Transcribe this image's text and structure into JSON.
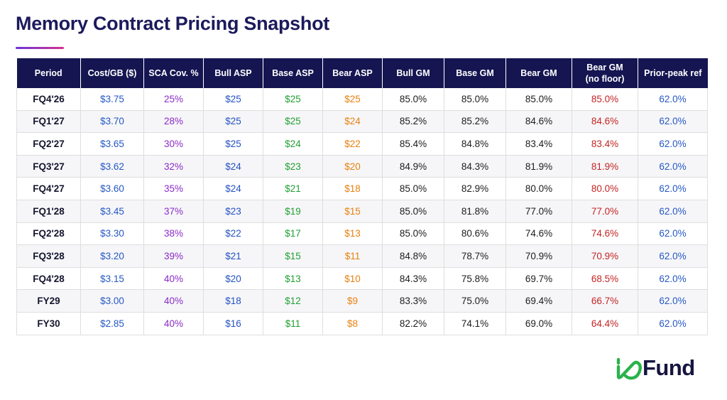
{
  "title": "Memory Contract Pricing Snapshot",
  "colors": {
    "header_bg": "#151552",
    "title": "#1c1a5c",
    "cost": "#2457c5",
    "sca": "#8a2bc7",
    "bull_asp": "#2452c3",
    "base_asp": "#22a034",
    "bear_asp": "#e8800e",
    "bear_gm_no_floor": "#c42424",
    "prior_peak": "#2457c5",
    "logo_green": "#2bb24c"
  },
  "logo": {
    "text": "Fund",
    "mark_icon": "io-logo-mark"
  },
  "chart_data": {
    "type": "table",
    "columns": [
      "Period",
      "Cost/GB ($)",
      "SCA Cov. %",
      "Bull ASP",
      "Base ASP",
      "Bear ASP",
      "Bull GM",
      "Base GM",
      "Bear GM",
      "Bear GM\n(no floor)",
      "Prior-peak ref"
    ],
    "rows": [
      [
        "FQ4'26",
        "$3.75",
        "25%",
        "$25",
        "$25",
        "$25",
        "85.0%",
        "85.0%",
        "85.0%",
        "85.0%",
        "62.0%"
      ],
      [
        "FQ1'27",
        "$3.70",
        "28%",
        "$25",
        "$25",
        "$24",
        "85.2%",
        "85.2%",
        "84.6%",
        "84.6%",
        "62.0%"
      ],
      [
        "FQ2'27",
        "$3.65",
        "30%",
        "$25",
        "$24",
        "$22",
        "85.4%",
        "84.8%",
        "83.4%",
        "83.4%",
        "62.0%"
      ],
      [
        "FQ3'27",
        "$3.62",
        "32%",
        "$24",
        "$23",
        "$20",
        "84.9%",
        "84.3%",
        "81.9%",
        "81.9%",
        "62.0%"
      ],
      [
        "FQ4'27",
        "$3.60",
        "35%",
        "$24",
        "$21",
        "$18",
        "85.0%",
        "82.9%",
        "80.0%",
        "80.0%",
        "62.0%"
      ],
      [
        "FQ1'28",
        "$3.45",
        "37%",
        "$23",
        "$19",
        "$15",
        "85.0%",
        "81.8%",
        "77.0%",
        "77.0%",
        "62.0%"
      ],
      [
        "FQ2'28",
        "$3.30",
        "38%",
        "$22",
        "$17",
        "$13",
        "85.0%",
        "80.6%",
        "74.6%",
        "74.6%",
        "62.0%"
      ],
      [
        "FQ3'28",
        "$3.20",
        "39%",
        "$21",
        "$15",
        "$11",
        "84.8%",
        "78.7%",
        "70.9%",
        "70.9%",
        "62.0%"
      ],
      [
        "FQ4'28",
        "$3.15",
        "40%",
        "$20",
        "$13",
        "$10",
        "84.3%",
        "75.8%",
        "69.7%",
        "68.5%",
        "62.0%"
      ],
      [
        "FY29",
        "$3.00",
        "40%",
        "$18",
        "$12",
        "$9",
        "83.3%",
        "75.0%",
        "69.4%",
        "66.7%",
        "62.0%"
      ],
      [
        "FY30",
        "$2.85",
        "40%",
        "$16",
        "$11",
        "$8",
        "82.2%",
        "74.1%",
        "69.0%",
        "64.4%",
        "62.0%"
      ]
    ]
  }
}
